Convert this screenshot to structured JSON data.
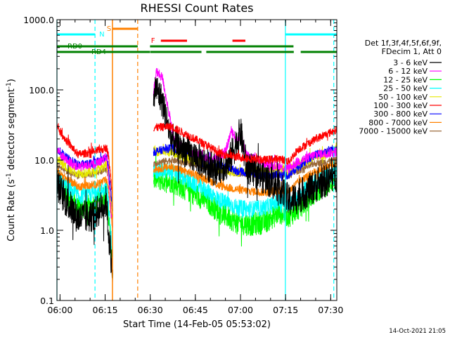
{
  "chart_data": {
    "type": "line",
    "title": "RHESSI Count Rates",
    "xlabel": "Start Time (14-Feb-05 05:53:02)",
    "ylabel_main": "Count Rate (s",
    "ylabel_sup1": "-1",
    "ylabel_mid": " detector segment",
    "ylabel_sup2": "-1",
    "ylabel_end": ")",
    "yscale": "log",
    "ylim": [
      0.1,
      1000
    ],
    "xlim_minutes": [
      5.95,
      99.0
    ],
    "x_ticks": [
      {
        "label": "06:00",
        "min": 6.97
      },
      {
        "label": "06:15",
        "min": 21.97
      },
      {
        "label": "06:30",
        "min": 36.97
      },
      {
        "label": "06:45",
        "min": 51.97
      },
      {
        "label": "07:00",
        "min": 66.97
      },
      {
        "label": "07:15",
        "min": 81.97
      },
      {
        "label": "07:30",
        "min": 96.97
      }
    ],
    "y_ticks": [
      {
        "label": "1000.0",
        "v": 1000
      },
      {
        "label": "100.0",
        "v": 100
      },
      {
        "label": "10.0",
        "v": 10
      },
      {
        "label": "1.0",
        "v": 1
      },
      {
        "label": "0.1",
        "v": 0.1
      }
    ],
    "legend_header": [
      "Det 1f,3f,4f,5f,6f,9f,",
      "FDecim 1, Att 0"
    ],
    "series": [
      {
        "name": "3 - 6 keV",
        "color": "#000000",
        "knots": [
          [
            5.95,
            4.6
          ],
          [
            9,
            2.6
          ],
          [
            13,
            1.5
          ],
          [
            18,
            1.6
          ],
          [
            22.5,
            2.6
          ],
          [
            23,
            1.0
          ],
          [
            24.5,
            0.24
          ],
          [
            37,
            0.0
          ],
          [
            38,
            55
          ],
          [
            38.7,
            110
          ],
          [
            41,
            68
          ],
          [
            44,
            20
          ],
          [
            48,
            14
          ],
          [
            55,
            9
          ],
          [
            58,
            7.5
          ],
          [
            63,
            9
          ],
          [
            67,
            25
          ],
          [
            69,
            8
          ],
          [
            75,
            5.5
          ],
          [
            80,
            4.2
          ],
          [
            83,
            2.6
          ],
          [
            86,
            2.9
          ],
          [
            92,
            4.3
          ],
          [
            98.8,
            6.0
          ]
        ],
        "noise": 0.24
      },
      {
        "name": "6 - 12 keV",
        "color": "#ff00ff",
        "knots": [
          [
            5.95,
            14
          ],
          [
            9,
            10
          ],
          [
            13,
            8.0
          ],
          [
            18,
            8.6
          ],
          [
            22.5,
            11
          ],
          [
            23,
            6
          ],
          [
            24.5,
            1.0
          ],
          [
            37,
            0.0
          ],
          [
            38,
            90
          ],
          [
            39,
            180
          ],
          [
            41,
            150
          ],
          [
            45,
            18
          ],
          [
            48,
            15
          ],
          [
            55,
            11
          ],
          [
            58,
            10
          ],
          [
            62,
            13
          ],
          [
            64,
            27
          ],
          [
            66,
            18
          ],
          [
            67,
            24
          ],
          [
            69,
            12
          ],
          [
            75,
            9
          ],
          [
            80,
            8
          ],
          [
            83,
            7.5
          ],
          [
            86,
            9.5
          ],
          [
            92,
            12
          ],
          [
            98.8,
            13
          ]
        ],
        "noise": 0.07
      },
      {
        "name": "12 - 25 keV",
        "color": "#00ff00",
        "knots": [
          [
            5.95,
            4.8
          ],
          [
            9,
            3.2
          ],
          [
            13,
            2.0
          ],
          [
            18,
            2.3
          ],
          [
            22.5,
            3.2
          ],
          [
            23,
            2.0
          ],
          [
            24.5,
            0.22
          ],
          [
            37,
            0.0
          ],
          [
            38,
            5.5
          ],
          [
            44,
            5.0
          ],
          [
            50,
            3.6
          ],
          [
            56,
            2.6
          ],
          [
            60,
            1.8
          ],
          [
            66,
            1.3
          ],
          [
            70,
            1.2
          ],
          [
            75,
            1.3
          ],
          [
            80,
            1.8
          ],
          [
            83,
            1.6
          ],
          [
            86,
            2.0
          ],
          [
            92,
            3.6
          ],
          [
            98.8,
            5.4
          ]
        ],
        "noise": 0.17
      },
      {
        "name": "25 - 50 keV",
        "color": "#00ffff",
        "knots": [
          [
            5.95,
            6.0
          ],
          [
            9,
            4.3
          ],
          [
            13,
            3.0
          ],
          [
            18,
            3.3
          ],
          [
            22.5,
            4.0
          ],
          [
            23,
            2.5
          ],
          [
            24.5,
            0.4
          ],
          [
            37,
            0.0
          ],
          [
            38,
            7.2
          ],
          [
            44,
            6.9
          ],
          [
            50,
            5.0
          ],
          [
            56,
            3.6
          ],
          [
            60,
            2.7
          ],
          [
            66,
            2.1
          ],
          [
            70,
            2.0
          ],
          [
            75,
            2.1
          ],
          [
            80,
            2.6
          ],
          [
            83,
            2.4
          ],
          [
            86,
            3.0
          ],
          [
            92,
            5.0
          ],
          [
            98.8,
            7.0
          ]
        ],
        "noise": 0.12
      },
      {
        "name": "50 - 100 keV",
        "color": "#e5e800",
        "knots": [
          [
            5.95,
            10.5
          ],
          [
            9,
            8.0
          ],
          [
            13,
            6.5
          ],
          [
            18,
            6.8
          ],
          [
            22.5,
            8.5
          ],
          [
            23,
            6
          ],
          [
            24.5,
            1.5
          ],
          [
            37,
            0.0
          ],
          [
            38,
            13.5
          ],
          [
            44,
            13.0
          ],
          [
            50,
            10.5
          ],
          [
            56,
            8.6
          ],
          [
            60,
            7.4
          ],
          [
            66,
            6.8
          ],
          [
            70,
            7.0
          ],
          [
            75,
            7.0
          ],
          [
            80,
            7.8
          ],
          [
            83,
            7.2
          ],
          [
            86,
            8.4
          ],
          [
            92,
            11
          ],
          [
            98.8,
            14
          ]
        ],
        "noise": 0.07
      },
      {
        "name": "100 - 300 keV",
        "color": "#ff0000",
        "knots": [
          [
            5.95,
            30
          ],
          [
            9,
            19
          ],
          [
            13,
            12
          ],
          [
            18,
            13
          ],
          [
            22.5,
            15
          ],
          [
            23,
            12
          ],
          [
            24.5,
            3
          ],
          [
            37,
            0.0
          ],
          [
            38,
            29
          ],
          [
            44,
            30
          ],
          [
            50,
            22
          ],
          [
            56,
            16
          ],
          [
            60,
            12.5
          ],
          [
            66,
            11
          ],
          [
            70,
            10.5
          ],
          [
            75,
            10
          ],
          [
            80,
            10.5
          ],
          [
            83,
            9.5
          ],
          [
            86,
            14
          ],
          [
            92,
            20
          ],
          [
            98.8,
            27
          ]
        ],
        "noise": 0.06
      },
      {
        "name": "300 - 800 keV",
        "color": "#0000ff",
        "knots": [
          [
            5.95,
            14.5
          ],
          [
            9,
            11
          ],
          [
            13,
            8.6
          ],
          [
            18,
            9.0
          ],
          [
            22.5,
            11
          ],
          [
            23,
            8
          ],
          [
            24.5,
            2
          ],
          [
            37,
            0.0
          ],
          [
            38,
            13
          ],
          [
            44,
            15
          ],
          [
            50,
            13
          ],
          [
            56,
            10
          ],
          [
            60,
            8.5
          ],
          [
            66,
            7.0
          ],
          [
            70,
            6.5
          ],
          [
            75,
            6.0
          ],
          [
            80,
            6.2
          ],
          [
            83,
            6.0
          ],
          [
            86,
            8.0
          ],
          [
            92,
            12
          ],
          [
            98.8,
            15
          ]
        ],
        "noise": 0.06
      },
      {
        "name": "800 - 7000 keV",
        "color": "#ff8000",
        "knots": [
          [
            5.95,
            7.0
          ],
          [
            9,
            5.5
          ],
          [
            13,
            4.2
          ],
          [
            18,
            4.4
          ],
          [
            22.5,
            5.2
          ],
          [
            23,
            4.0
          ],
          [
            24.5,
            1.0
          ],
          [
            37,
            0.0
          ],
          [
            38,
            7.4
          ],
          [
            44,
            8.0
          ],
          [
            50,
            6.6
          ],
          [
            56,
            5.3
          ],
          [
            60,
            4.3
          ],
          [
            66,
            3.8
          ],
          [
            70,
            3.6
          ],
          [
            75,
            3.5
          ],
          [
            80,
            3.7
          ],
          [
            83,
            3.6
          ],
          [
            86,
            4.8
          ],
          [
            92,
            7.0
          ],
          [
            98.8,
            9.0
          ]
        ],
        "noise": 0.06
      },
      {
        "name": "7000 - 15000 keV",
        "color": "#9b6a3a",
        "knots": [
          [
            5.95,
            8.5
          ],
          [
            9,
            7.0
          ],
          [
            13,
            6.0
          ],
          [
            18,
            6.3
          ],
          [
            22.5,
            7.5
          ],
          [
            23,
            6.0
          ],
          [
            24.5,
            1.5
          ],
          [
            37,
            0.0
          ],
          [
            38,
            9.0
          ],
          [
            44,
            10
          ],
          [
            50,
            9.0
          ],
          [
            56,
            8.0
          ],
          [
            60,
            7.0
          ],
          [
            66,
            6.5
          ],
          [
            70,
            6.3
          ],
          [
            75,
            6.0
          ],
          [
            80,
            6.2
          ],
          [
            83,
            6.0
          ],
          [
            86,
            7.0
          ],
          [
            92,
            9.0
          ],
          [
            98.8,
            10
          ]
        ],
        "noise": 0.05
      }
    ],
    "annotations": {
      "night_label": "N",
      "saa_label": "S",
      "flare_label": "F",
      "rd0_label": "RD0",
      "rd4_label": "RD4",
      "night_intervals": [
        [
          5.95,
          18.6
        ],
        [
          81.9,
          99.0
        ]
      ],
      "saa_interval": [
        24.4,
        32.8
      ],
      "flare_intervals": [
        [
          40.5,
          49.2
        ],
        [
          64.3,
          68.6
        ]
      ],
      "rd0_intervals": [
        [
          5.95,
          32.8
        ],
        [
          36.9,
          84.6
        ]
      ],
      "rd4_intervals": [
        [
          5.95,
          36.9
        ],
        [
          37.0,
          54.0
        ],
        [
          55.6,
          84.7
        ],
        [
          87.0,
          99.0
        ]
      ],
      "cyan_vlines_solid": [
        5.95,
        81.9
      ],
      "cyan_vlines_dashed": [
        18.6,
        98.0
      ],
      "orange_vline_solid": 24.4,
      "orange_vline_dashed": 32.8,
      "colors": {
        "night": "#00ffff",
        "saa": "#ff8000",
        "flare": "#ff0000",
        "rd": "#008000"
      }
    }
  },
  "timestamp": "14-Oct-2021 21:05"
}
